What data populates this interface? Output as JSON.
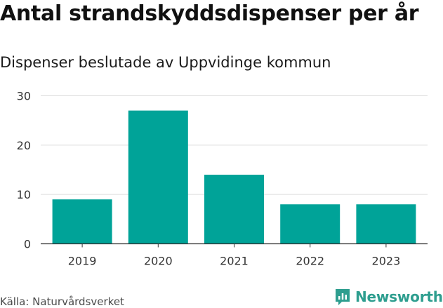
{
  "title": "Antal strandskyddsdispenser per år",
  "subtitle": "Dispenser beslutade av Uppvidinge kommun",
  "source": "Källa: Naturvårdsverket",
  "brand": {
    "name": "Newsworthy",
    "icon": "newsworthy-logo-icon",
    "color": "#2e9e8f"
  },
  "colors": {
    "bar": "#00a398",
    "grid": "#dddddd",
    "axis": "#333333",
    "text": "#333333"
  },
  "chart_data": {
    "type": "bar",
    "title": "Antal strandskyddsdispenser per år",
    "subtitle": "Dispenser beslutade av Uppvidinge kommun",
    "xlabel": "",
    "ylabel": "",
    "categories": [
      "2019",
      "2020",
      "2021",
      "2022",
      "2023"
    ],
    "values": [
      9,
      27,
      14,
      8,
      8
    ],
    "ylim": [
      0,
      30
    ],
    "yticks": [
      0,
      10,
      20,
      30
    ],
    "grid": true,
    "legend": "none"
  }
}
